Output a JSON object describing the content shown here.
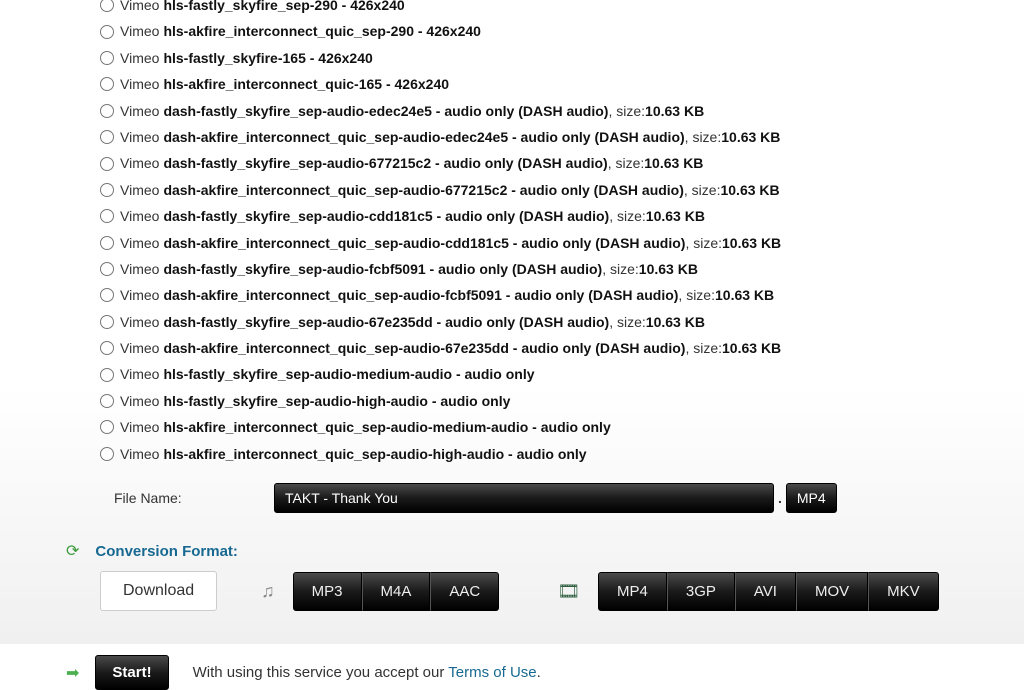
{
  "formats": [
    {
      "source": "Vimeo",
      "id": "hls-fastly_skyfire_sep-290",
      "detail": " - 426x240",
      "size": null
    },
    {
      "source": "Vimeo",
      "id": "hls-akfire_interconnect_quic_sep-290",
      "detail": " - 426x240",
      "size": null
    },
    {
      "source": "Vimeo",
      "id": "hls-fastly_skyfire-165",
      "detail": " - 426x240",
      "size": null
    },
    {
      "source": "Vimeo",
      "id": "hls-akfire_interconnect_quic-165",
      "detail": " - 426x240",
      "size": null
    },
    {
      "source": "Vimeo",
      "id": "dash-fastly_skyfire_sep-audio-edec24e5",
      "detail": " - audio only (DASH audio)",
      "size": "10.63 KB"
    },
    {
      "source": "Vimeo",
      "id": "dash-akfire_interconnect_quic_sep-audio-edec24e5",
      "detail": " - audio only (DASH audio)",
      "size": "10.63 KB"
    },
    {
      "source": "Vimeo",
      "id": "dash-fastly_skyfire_sep-audio-677215c2",
      "detail": " - audio only (DASH audio)",
      "size": "10.63 KB"
    },
    {
      "source": "Vimeo",
      "id": "dash-akfire_interconnect_quic_sep-audio-677215c2",
      "detail": " - audio only (DASH audio)",
      "size": "10.63 KB"
    },
    {
      "source": "Vimeo",
      "id": "dash-fastly_skyfire_sep-audio-cdd181c5",
      "detail": " - audio only (DASH audio)",
      "size": "10.63 KB"
    },
    {
      "source": "Vimeo",
      "id": "dash-akfire_interconnect_quic_sep-audio-cdd181c5",
      "detail": " - audio only (DASH audio)",
      "size": "10.63 KB"
    },
    {
      "source": "Vimeo",
      "id": "dash-fastly_skyfire_sep-audio-fcbf5091",
      "detail": " - audio only (DASH audio)",
      "size": "10.63 KB"
    },
    {
      "source": "Vimeo",
      "id": "dash-akfire_interconnect_quic_sep-audio-fcbf5091",
      "detail": " - audio only (DASH audio)",
      "size": "10.63 KB"
    },
    {
      "source": "Vimeo",
      "id": "dash-fastly_skyfire_sep-audio-67e235dd",
      "detail": " - audio only (DASH audio)",
      "size": "10.63 KB"
    },
    {
      "source": "Vimeo",
      "id": "dash-akfire_interconnect_quic_sep-audio-67e235dd",
      "detail": " - audio only (DASH audio)",
      "size": "10.63 KB"
    },
    {
      "source": "Vimeo",
      "id": "hls-fastly_skyfire_sep-audio-medium-audio",
      "detail": " - audio only",
      "size": null
    },
    {
      "source": "Vimeo",
      "id": "hls-fastly_skyfire_sep-audio-high-audio",
      "detail": " - audio only",
      "size": null
    },
    {
      "source": "Vimeo",
      "id": "hls-akfire_interconnect_quic_sep-audio-medium-audio",
      "detail": " - audio only",
      "size": null
    },
    {
      "source": "Vimeo",
      "id": "hls-akfire_interconnect_quic_sep-audio-high-audio",
      "detail": " - audio only",
      "size": null
    }
  ],
  "size_label": ", size: ",
  "filename": {
    "label": "File Name:",
    "value": "TAKT - Thank You",
    "dot": ".",
    "ext": "MP4"
  },
  "conversion": {
    "label": "Conversion Format:",
    "download": "Download",
    "audio_formats": [
      "MP3",
      "M4A",
      "AAC"
    ],
    "video_formats": [
      "MP4",
      "3GP",
      "AVI",
      "MOV",
      "MKV"
    ]
  },
  "start": {
    "button": "Start!",
    "text_prefix": "With using this service you accept our ",
    "tos": "Terms of Use",
    "text_suffix": "."
  },
  "colors": {
    "link": "#176992",
    "bg_dark": "#1a1a1a",
    "accent_green": "#3c9b3c"
  }
}
